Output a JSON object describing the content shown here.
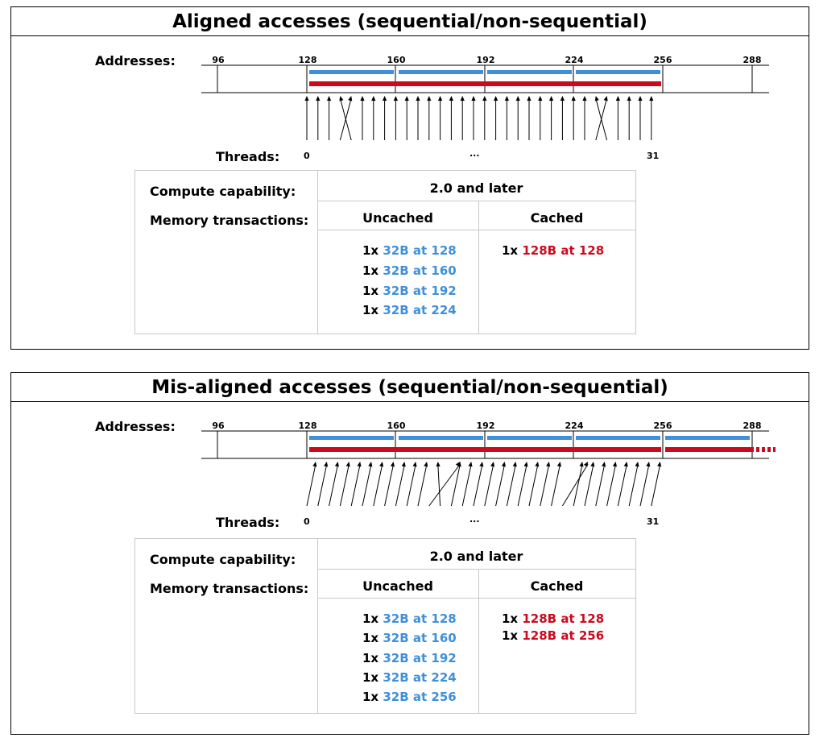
{
  "colors": {
    "blue": "#3f8fdb",
    "red": "#cc0a1e"
  },
  "address_ticks": [
    "96",
    "128",
    "160",
    "192",
    "224",
    "256",
    "288"
  ],
  "panels": [
    {
      "title": "Aligned accesses (sequential/non-sequential)",
      "addresses_label": "Addresses:",
      "threads_label": "Threads:",
      "thread_first": "0",
      "thread_ellipsis": "...",
      "thread_last": "31",
      "compute_label": "Compute capability:",
      "compute_value": "2.0 and later",
      "memory_label": "Memory transactions:",
      "uncached_header": "Uncached",
      "cached_header": "Cached",
      "uncached": [
        {
          "count": "1x",
          "desc": "32B at 128"
        },
        {
          "count": "1x",
          "desc": "32B at 160"
        },
        {
          "count": "1x",
          "desc": "32B at 192"
        },
        {
          "count": "1x",
          "desc": "32B at 224"
        }
      ],
      "cached": [
        {
          "count": "1x",
          "desc": "128B at 128"
        }
      ]
    },
    {
      "title": "Mis-aligned accesses (sequential/non-sequential)",
      "addresses_label": "Addresses:",
      "threads_label": "Threads:",
      "thread_first": "0",
      "thread_ellipsis": "...",
      "thread_last": "31",
      "compute_label": "Compute capability:",
      "compute_value": "2.0 and later",
      "memory_label": "Memory transactions:",
      "uncached_header": "Uncached",
      "cached_header": "Cached",
      "uncached": [
        {
          "count": "1x",
          "desc": "32B at 128"
        },
        {
          "count": "1x",
          "desc": "32B at 160"
        },
        {
          "count": "1x",
          "desc": "32B at 192"
        },
        {
          "count": "1x",
          "desc": "32B at 224"
        },
        {
          "count": "1x",
          "desc": "32B at 256"
        }
      ],
      "cached": [
        {
          "count": "1x",
          "desc": "128B at 128"
        },
        {
          "count": "1x",
          "desc": "128B at 256"
        }
      ]
    }
  ]
}
